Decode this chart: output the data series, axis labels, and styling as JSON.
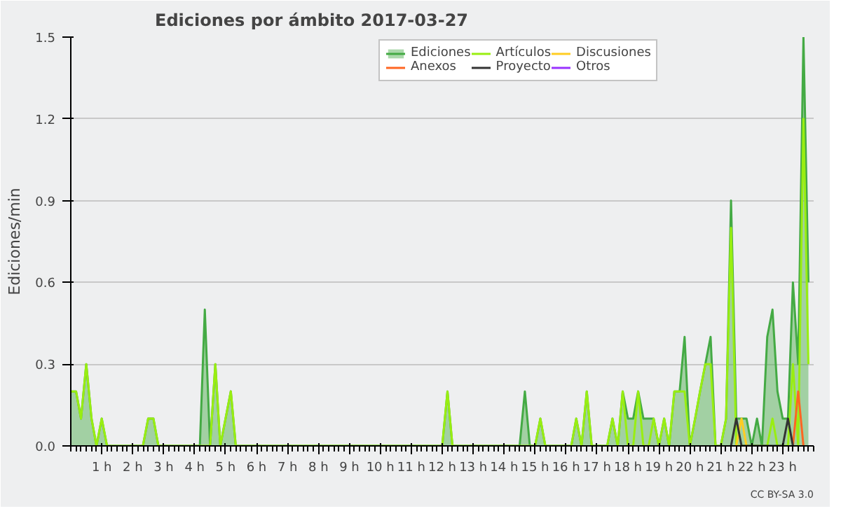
{
  "chart_data": {
    "type": "line",
    "title": "Ediciones por ámbito  2017-03-27",
    "ylabel": "Ediciones/min",
    "xlim": [
      0,
      24
    ],
    "ylim": [
      0,
      1.5
    ],
    "xticks": [
      {
        "value": 1,
        "label": "1 h"
      },
      {
        "value": 2,
        "label": "2 h"
      },
      {
        "value": 3,
        "label": "3 h"
      },
      {
        "value": 4,
        "label": "4 h"
      },
      {
        "value": 5,
        "label": "5 h"
      },
      {
        "value": 6,
        "label": "6 h"
      },
      {
        "value": 7,
        "label": "7 h"
      },
      {
        "value": 8,
        "label": "8 h"
      },
      {
        "value": 9,
        "label": "9 h"
      },
      {
        "value": 10,
        "label": "10 h"
      },
      {
        "value": 11,
        "label": "11 h"
      },
      {
        "value": 12,
        "label": "12 h"
      },
      {
        "value": 13,
        "label": "13 h"
      },
      {
        "value": 14,
        "label": "14 h"
      },
      {
        "value": 15,
        "label": "15 h"
      },
      {
        "value": 16,
        "label": "16 h"
      },
      {
        "value": 17,
        "label": "17 h"
      },
      {
        "value": 18,
        "label": "18 h"
      },
      {
        "value": 19,
        "label": "19 h"
      },
      {
        "value": 20,
        "label": "20 h"
      },
      {
        "value": 21,
        "label": "21 h"
      },
      {
        "value": 22,
        "label": "22 h"
      },
      {
        "value": 23,
        "label": "23 h"
      }
    ],
    "yticks": [
      {
        "value": 0,
        "label": "0.0"
      },
      {
        "value": 0.3,
        "label": "0.3"
      },
      {
        "value": 0.6,
        "label": "0.6"
      },
      {
        "value": 0.9,
        "label": "0.9"
      },
      {
        "value": 1.2,
        "label": "1.2"
      },
      1.5
    ],
    "grid": "y",
    "legend": "top right",
    "annotations": [
      "CC BY-SA 3.0"
    ],
    "series": [
      {
        "name": "Ediciones",
        "type": "area",
        "color": "#44aa44",
        "x": [
          0,
          0.17,
          0.33,
          0.5,
          0.67,
          0.83,
          1.0,
          1.17,
          2.33,
          2.5,
          2.67,
          2.83,
          4.17,
          4.33,
          4.5,
          4.67,
          4.83,
          5.0,
          5.17,
          5.33,
          12.0,
          12.17,
          12.33,
          14.5,
          14.67,
          14.83,
          15.0,
          15.17,
          15.33,
          16.17,
          16.33,
          16.5,
          16.67,
          16.83,
          17.33,
          17.5,
          17.67,
          17.83,
          18.0,
          18.17,
          18.33,
          18.5,
          18.67,
          18.83,
          19.0,
          19.17,
          19.33,
          19.5,
          19.67,
          19.83,
          20.0,
          20.17,
          20.33,
          20.5,
          20.67,
          20.83,
          21.0,
          21.17,
          21.33,
          21.5,
          21.67,
          21.83,
          22.0,
          22.17,
          22.33,
          22.5,
          22.67,
          22.83,
          23.0,
          23.17,
          23.33,
          23.5,
          23.67,
          23.83
        ],
        "values": [
          0.2,
          0.2,
          0.1,
          0.3,
          0.1,
          0,
          0.1,
          0,
          0,
          0.1,
          0.1,
          0,
          0,
          0.5,
          0,
          0.3,
          0,
          0.1,
          0.2,
          0,
          0,
          0.2,
          0,
          0,
          0.2,
          0,
          0,
          0.1,
          0,
          0,
          0.1,
          0,
          0.2,
          0,
          0,
          0.1,
          0,
          0.2,
          0.1,
          0.1,
          0.2,
          0.1,
          0.1,
          0.1,
          0,
          0.1,
          0,
          0.2,
          0.2,
          0.4,
          0,
          0.1,
          0.2,
          0.3,
          0.4,
          0,
          0,
          0.1,
          0.9,
          0.1,
          0.1,
          0.1,
          0,
          0.1,
          0,
          0.4,
          0.5,
          0.2,
          0.1,
          0.1,
          0.6,
          0.3,
          1.5,
          0.6
        ]
      },
      {
        "name": "Artículos",
        "color": "#99ee11",
        "x": [
          0,
          0.17,
          0.33,
          0.5,
          0.67,
          0.83,
          1.0,
          1.17,
          2.33,
          2.5,
          2.67,
          2.83,
          4.5,
          4.67,
          4.83,
          5.0,
          5.17,
          5.33,
          12.0,
          12.17,
          12.33,
          15.0,
          15.17,
          15.33,
          16.17,
          16.33,
          16.5,
          16.67,
          16.83,
          17.33,
          17.5,
          17.67,
          17.83,
          18.0,
          18.17,
          18.33,
          18.5,
          18.67,
          18.83,
          19.0,
          19.17,
          19.33,
          19.5,
          19.67,
          19.83,
          20.0,
          20.17,
          20.33,
          20.5,
          20.67,
          20.83,
          21.0,
          21.17,
          21.33,
          21.5,
          21.67,
          22.5,
          22.67,
          22.83,
          23.0,
          23.17,
          23.33,
          23.5,
          23.67,
          23.83
        ],
        "values": [
          0.2,
          0.2,
          0.1,
          0.3,
          0.1,
          0,
          0.1,
          0,
          0,
          0.1,
          0.1,
          0,
          0,
          0.3,
          0,
          0.1,
          0.2,
          0,
          0,
          0.2,
          0,
          0,
          0.1,
          0,
          0,
          0.1,
          0,
          0.2,
          0,
          0,
          0.1,
          0,
          0.2,
          0,
          0,
          0.2,
          0,
          0,
          0.1,
          0,
          0.1,
          0,
          0.2,
          0.2,
          0.2,
          0,
          0.1,
          0.2,
          0.3,
          0.3,
          0,
          0,
          0.1,
          0.8,
          0,
          0,
          0,
          0.1,
          0,
          0,
          0,
          0.3,
          0,
          1.2,
          0.3
        ]
      },
      {
        "name": "Discusiones",
        "color": "#ffcc22",
        "x": [
          21.5,
          21.67,
          21.83
        ],
        "values": [
          0,
          0.1,
          0
        ]
      },
      {
        "name": "Anexos",
        "color": "#ff6622",
        "x": [
          23.33,
          23.5,
          23.67
        ],
        "values": [
          0,
          0.2,
          0
        ]
      },
      {
        "name": "Proyecto",
        "color": "#333333",
        "x": [
          21.33,
          21.5,
          21.67,
          23.0,
          23.17,
          23.33
        ],
        "values": [
          0,
          0.1,
          0,
          0,
          0.1,
          0
        ]
      },
      {
        "name": "Otros",
        "color": "#9933ff"
      }
    ]
  }
}
